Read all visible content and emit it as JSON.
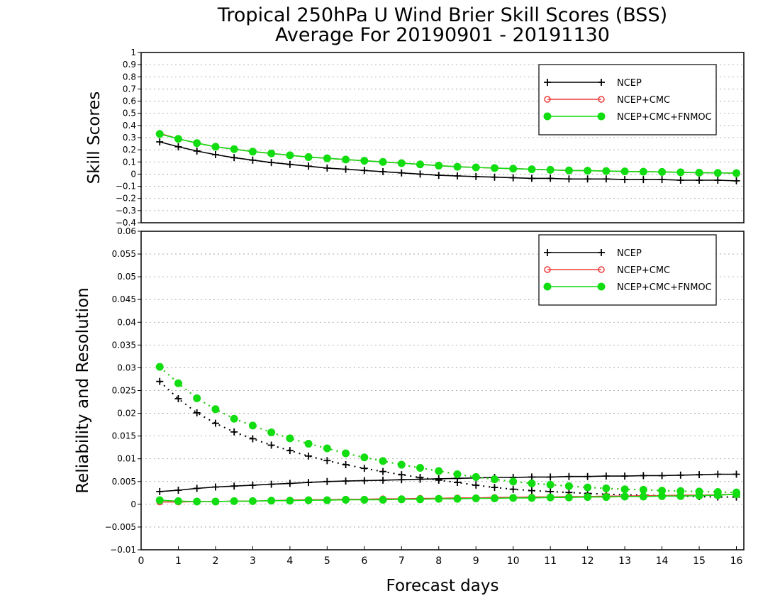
{
  "title_line1": "Tropical 250hPa U Wind Brier Skill Scores (BSS)",
  "title_line2": "Average For 20190901 - 20191130",
  "colors": {
    "NCEP": "#000000",
    "NCEP+CMC": "#ee3a3a",
    "NCEP+CMC+FNMOC": "#11dd11"
  },
  "chart_data": [
    {
      "type": "line",
      "ylabel": "Skill Scores",
      "xlim": [
        0,
        16.2
      ],
      "ylim": [
        -0.4,
        1
      ],
      "yticks": [
        -0.4,
        -0.3,
        -0.2,
        -0.1,
        0,
        0.1,
        0.2,
        0.3,
        0.4,
        0.5,
        0.6,
        0.7,
        0.8,
        0.9,
        1
      ],
      "ytick_labels": [
        "−0.4",
        "−0.3",
        "−0.2",
        "−0.1",
        "0",
        "0.1",
        "0.2",
        "0.3",
        "0.4",
        "0.5",
        "0.6",
        "0.7",
        "0.8",
        "0.9",
        "1"
      ],
      "grid": true,
      "legend_position": "top-right",
      "x": [
        0.5,
        1,
        1.5,
        2,
        2.5,
        3,
        3.5,
        4,
        4.5,
        5,
        5.5,
        6,
        6.5,
        7,
        7.5,
        8,
        8.5,
        9,
        9.5,
        10,
        10.5,
        11,
        11.5,
        12,
        12.5,
        13,
        13.5,
        14,
        14.5,
        15,
        15.5,
        16
      ],
      "series": [
        {
          "name": "NCEP",
          "marker": "plus",
          "style": "solid",
          "values": [
            0.265,
            0.225,
            0.19,
            0.16,
            0.135,
            0.115,
            0.095,
            0.08,
            0.065,
            0.05,
            0.04,
            0.03,
            0.02,
            0.01,
            0.0,
            -0.01,
            -0.015,
            -0.02,
            -0.025,
            -0.03,
            -0.035,
            -0.035,
            -0.04,
            -0.04,
            -0.04,
            -0.045,
            -0.045,
            -0.045,
            -0.05,
            -0.05,
            -0.05,
            -0.055
          ]
        },
        {
          "name": "NCEP+CMC",
          "marker": "open-circle",
          "style": "solid",
          "values": [
            0.335,
            0.29,
            0.255,
            0.225,
            0.205,
            0.185,
            0.17,
            0.155,
            0.14,
            0.13,
            0.12,
            0.11,
            0.1,
            0.09,
            0.08,
            0.07,
            0.06,
            0.055,
            0.05,
            0.045,
            0.04,
            0.035,
            0.03,
            0.028,
            0.025,
            0.022,
            0.02,
            0.018,
            0.015,
            0.012,
            0.01,
            0.008
          ]
        },
        {
          "name": "NCEP+CMC+FNMOC",
          "marker": "filled-circle",
          "style": "solid",
          "values": [
            0.33,
            0.29,
            0.255,
            0.225,
            0.205,
            0.185,
            0.17,
            0.155,
            0.14,
            0.13,
            0.12,
            0.11,
            0.1,
            0.09,
            0.08,
            0.07,
            0.06,
            0.055,
            0.05,
            0.045,
            0.04,
            0.035,
            0.03,
            0.028,
            0.025,
            0.022,
            0.02,
            0.018,
            0.015,
            0.012,
            0.01,
            0.008
          ]
        }
      ]
    },
    {
      "type": "line",
      "ylabel": "Reliability and Resolution",
      "xlabel": "Forecast days",
      "xlim": [
        0,
        16.2
      ],
      "ylim": [
        -0.01,
        0.06
      ],
      "xticks": [
        0,
        1,
        2,
        3,
        4,
        5,
        6,
        7,
        8,
        9,
        10,
        11,
        12,
        13,
        14,
        15,
        16
      ],
      "yticks": [
        -0.01,
        -0.005,
        0,
        0.005,
        0.01,
        0.015,
        0.02,
        0.025,
        0.03,
        0.035,
        0.04,
        0.045,
        0.05,
        0.055,
        0.06
      ],
      "ytick_labels": [
        "−0.01",
        "−0.005",
        "0",
        "0.005",
        "0.01",
        "0.015",
        "0.02",
        "0.025",
        "0.03",
        "0.035",
        "0.04",
        "0.045",
        "0.05",
        "0.055",
        "0.06"
      ],
      "grid": true,
      "legend_position": "top-right",
      "x": [
        0.5,
        1,
        1.5,
        2,
        2.5,
        3,
        3.5,
        4,
        4.5,
        5,
        5.5,
        6,
        6.5,
        7,
        7.5,
        8,
        8.5,
        9,
        9.5,
        10,
        10.5,
        11,
        11.5,
        12,
        12.5,
        13,
        13.5,
        14,
        14.5,
        15,
        15.5,
        16
      ],
      "series": [
        {
          "name": "NCEP",
          "marker": "plus",
          "style": "solid",
          "values": [
            0.0028,
            0.0031,
            0.0035,
            0.0038,
            0.004,
            0.0042,
            0.0044,
            0.0046,
            0.0048,
            0.005,
            0.0051,
            0.0052,
            0.0053,
            0.0054,
            0.0055,
            0.0056,
            0.0057,
            0.0058,
            0.0059,
            0.0059,
            0.006,
            0.006,
            0.0061,
            0.0061,
            0.0062,
            0.0062,
            0.0063,
            0.0063,
            0.0064,
            0.0065,
            0.0066,
            0.0066
          ]
        },
        {
          "name": "NCEP",
          "marker": "plus",
          "style": "dotted",
          "values": [
            0.027,
            0.0232,
            0.0201,
            0.0178,
            0.0159,
            0.0144,
            0.013,
            0.0118,
            0.0106,
            0.0096,
            0.0087,
            0.0079,
            0.0072,
            0.0065,
            0.0059,
            0.0053,
            0.0048,
            0.0042,
            0.0037,
            0.0033,
            0.003,
            0.0028,
            0.0026,
            0.0024,
            0.0022,
            0.0021,
            0.002,
            0.0019,
            0.0018,
            0.0017,
            0.0016,
            0.0016
          ]
        },
        {
          "name": "NCEP+CMC",
          "marker": "open-circle",
          "style": "solid",
          "values": [
            0.0005,
            0.0005,
            0.0006,
            0.0006,
            0.0007,
            0.0007,
            0.0008,
            0.0009,
            0.001,
            0.001,
            0.0011,
            0.0011,
            0.0012,
            0.0012,
            0.0013,
            0.0013,
            0.0014,
            0.0014,
            0.0015,
            0.0015,
            0.0016,
            0.0016,
            0.0017,
            0.0017,
            0.0018,
            0.0018,
            0.0019,
            0.0019,
            0.002,
            0.002,
            0.0021,
            0.0022
          ]
        },
        {
          "name": "NCEP+CMC",
          "marker": "open-circle",
          "style": "dotted",
          "values": [
            0.0302,
            0.0266,
            0.0233,
            0.0209,
            0.0188,
            0.0173,
            0.0158,
            0.0145,
            0.0133,
            0.0123,
            0.0112,
            0.0103,
            0.0095,
            0.0087,
            0.008,
            0.0073,
            0.0066,
            0.006,
            0.0055,
            0.005,
            0.0046,
            0.0043,
            0.004,
            0.0037,
            0.0035,
            0.0033,
            0.0032,
            0.003,
            0.0029,
            0.0028,
            0.0027,
            0.0026
          ]
        },
        {
          "name": "NCEP+CMC+FNMOC",
          "marker": "filled-circle",
          "style": "solid",
          "values": [
            0.0009,
            0.0007,
            0.0006,
            0.0006,
            0.0007,
            0.0007,
            0.0008,
            0.0008,
            0.0009,
            0.0009,
            0.001,
            0.001,
            0.001,
            0.0011,
            0.0011,
            0.0012,
            0.0012,
            0.0013,
            0.0013,
            0.0014,
            0.0014,
            0.0015,
            0.0015,
            0.0016,
            0.0016,
            0.0017,
            0.0017,
            0.0018,
            0.0018,
            0.0019,
            0.002,
            0.0022
          ]
        },
        {
          "name": "NCEP+CMC+FNMOC",
          "marker": "filled-circle",
          "style": "dotted",
          "values": [
            0.0302,
            0.0266,
            0.0233,
            0.0209,
            0.0188,
            0.0173,
            0.0158,
            0.0145,
            0.0133,
            0.0123,
            0.0112,
            0.0103,
            0.0095,
            0.0087,
            0.008,
            0.0073,
            0.0066,
            0.006,
            0.0055,
            0.005,
            0.0046,
            0.0043,
            0.004,
            0.0037,
            0.0035,
            0.0033,
            0.0032,
            0.003,
            0.0029,
            0.0028,
            0.0027,
            0.0026
          ]
        }
      ]
    }
  ]
}
